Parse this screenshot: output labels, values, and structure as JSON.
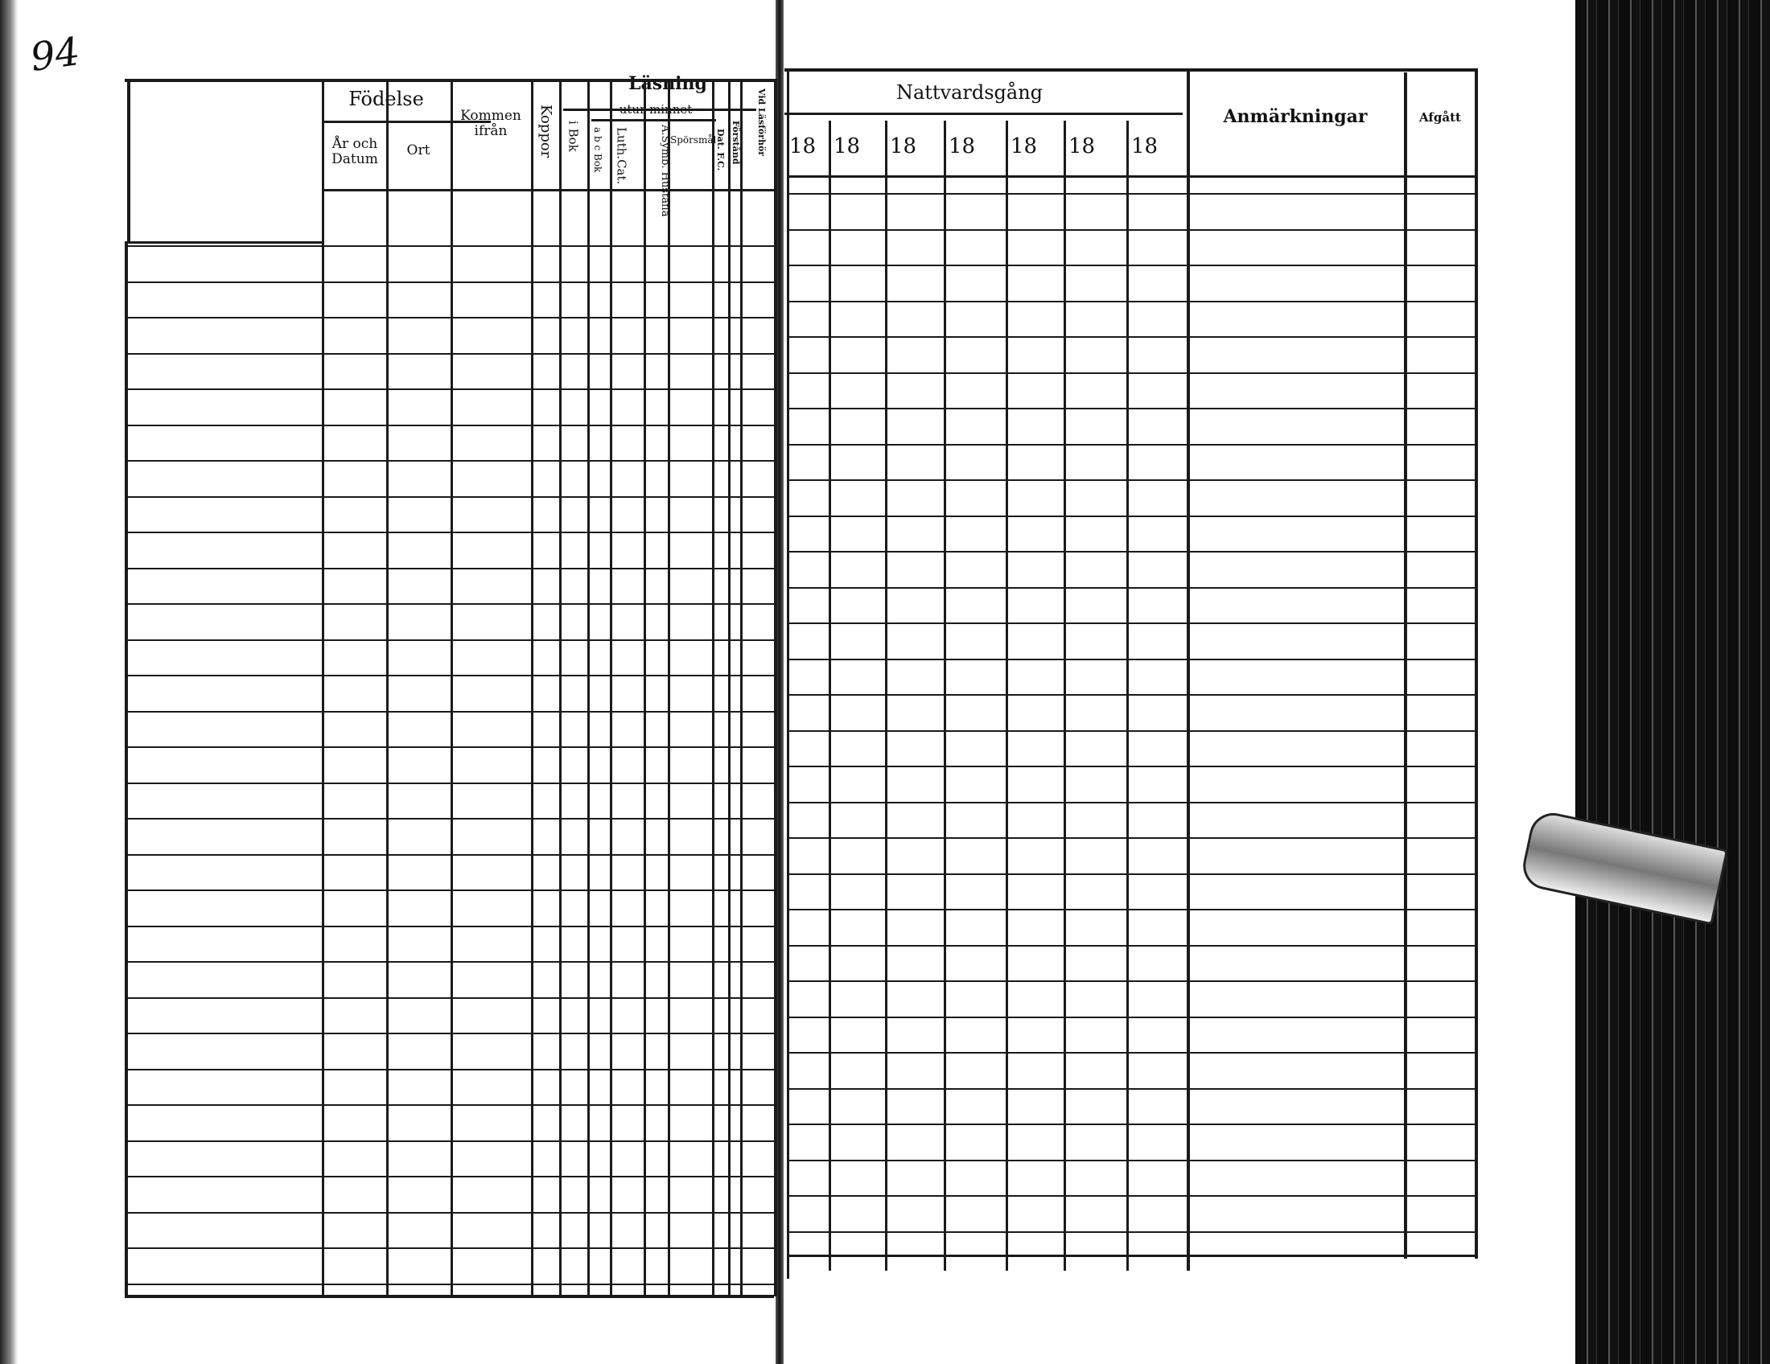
{
  "page_number": "94",
  "left_page": {
    "headers": {
      "fodelse": "Födelse",
      "ar_och_datum": "År och Datum",
      "ort": "Ort",
      "kommen_ifran": "Kommen ifrån",
      "koppor": "Koppor",
      "lasning": "Läsning",
      "utur_minnet": "utur minnet",
      "i_bok": "i Bok",
      "abc_bok": "a b c Bok",
      "luth_cat": "Luth.Cat.",
      "a_symb_hustafla": "A.Symb. Hustafla",
      "sporsmal": "Spörsmål",
      "dat_fc": "Dat. F.C.",
      "forstand": "Förstånd",
      "vid_lasforhor": "Vid Läsförhör"
    }
  },
  "right_page": {
    "headers": {
      "nattvardsgang": "Nattvardsgång",
      "years": [
        "18",
        "18",
        "18",
        "18",
        "18",
        "18",
        "18"
      ],
      "anmarkningar": "Anmärkningar",
      "afgatt": "Afgått"
    }
  }
}
